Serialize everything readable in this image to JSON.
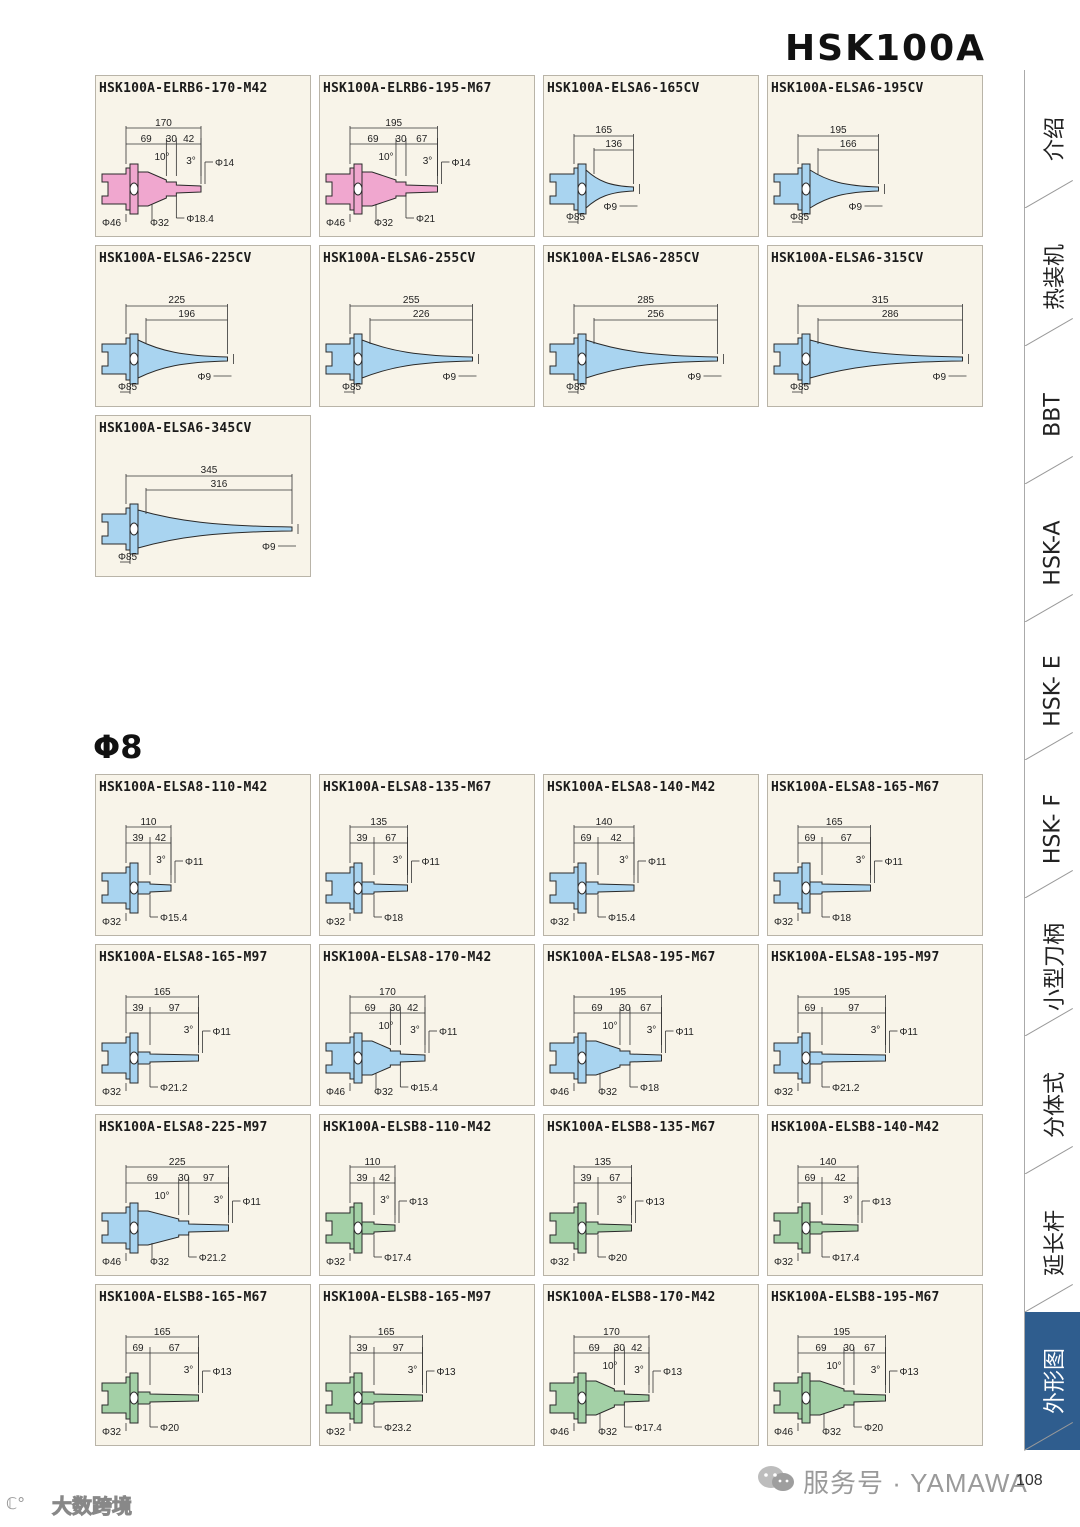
{
  "header": {
    "title": "HSK100A"
  },
  "section": {
    "heading": "Φ8"
  },
  "colors": {
    "pink": "#f0a7cf",
    "blue": "#a9d4f0",
    "green": "#a3d0a6",
    "nav_active": "#2f5d8e"
  },
  "cards": [
    {
      "title": "HSK100A-ELRB6-170-M42",
      "body": "pink",
      "shape": "stepped",
      "holder": "d46",
      "total": "170",
      "sub": [
        "69",
        "30",
        "42"
      ],
      "angle1": "10°",
      "angle2": "3°",
      "tip": "Φ14",
      "d1": "Φ46",
      "d2": "Φ32",
      "d3": "Φ18.4"
    },
    {
      "title": "HSK100A-ELRB6-195-M67",
      "body": "pink",
      "shape": "stepped",
      "holder": "d46",
      "total": "195",
      "sub": [
        "69",
        "30",
        "67"
      ],
      "angle1": "10°",
      "angle2": "3°",
      "tip": "Φ14",
      "d1": "Φ46",
      "d2": "Φ32",
      "d3": "Φ21"
    },
    {
      "title": "HSK100A-ELSA6-165CV",
      "body": "blue",
      "shape": "cone",
      "total": "165",
      "sub2": "136",
      "d1": "Φ85",
      "tip": "Φ9"
    },
    {
      "title": "HSK100A-ELSA6-195CV",
      "body": "blue",
      "shape": "cone",
      "total": "195",
      "sub2": "166",
      "d1": "Φ85",
      "tip": "Φ9"
    },
    {
      "title": "HSK100A-ELSA6-225CV",
      "body": "blue",
      "shape": "cone",
      "total": "225",
      "sub2": "196",
      "d1": "Φ85",
      "tip": "Φ9"
    },
    {
      "title": "HSK100A-ELSA6-255CV",
      "body": "blue",
      "shape": "cone",
      "total": "255",
      "sub2": "226",
      "d1": "Φ85",
      "tip": "Φ9"
    },
    {
      "title": "HSK100A-ELSA6-285CV",
      "body": "blue",
      "shape": "cone",
      "total": "285",
      "sub2": "256",
      "d1": "Φ85",
      "tip": "Φ9"
    },
    {
      "title": "HSK100A-ELSA6-315CV",
      "body": "blue",
      "shape": "cone",
      "total": "315",
      "sub2": "286",
      "d1": "Φ85",
      "tip": "Φ9"
    },
    {
      "title": "HSK100A-ELSA6-345CV",
      "body": "blue",
      "shape": "cone",
      "total": "345",
      "sub2": "316",
      "d1": "Φ85",
      "tip": "Φ9"
    },
    {
      "title": "HSK100A-ELSA8-110-M42",
      "body": "blue",
      "shape": "simple",
      "total": "110",
      "sub": [
        "39",
        "42"
      ],
      "angle2": "3°",
      "tip": "Φ11",
      "d1": "Φ32",
      "d3": "Φ15.4"
    },
    {
      "title": "HSK100A-ELSA8-135-M67",
      "body": "blue",
      "shape": "simple",
      "total": "135",
      "sub": [
        "39",
        "67"
      ],
      "angle2": "3°",
      "tip": "Φ11",
      "d1": "Φ32",
      "d3": "Φ18"
    },
    {
      "title": "HSK100A-ELSA8-140-M42",
      "body": "blue",
      "shape": "simple",
      "total": "140",
      "sub": [
        "69",
        "42"
      ],
      "angle2": "3°",
      "tip": "Φ11",
      "d1": "Φ32",
      "d3": "Φ15.4"
    },
    {
      "title": "HSK100A-ELSA8-165-M67",
      "body": "blue",
      "shape": "simple",
      "total": "165",
      "sub": [
        "69",
        "67"
      ],
      "angle2": "3°",
      "tip": "Φ11",
      "d1": "Φ32",
      "d3": "Φ18"
    },
    {
      "title": "HSK100A-ELSA8-165-M97",
      "body": "blue",
      "shape": "simple",
      "total": "165",
      "sub": [
        "39",
        "97"
      ],
      "angle2": "3°",
      "tip": "Φ11",
      "d1": "Φ32",
      "d3": "Φ21.2"
    },
    {
      "title": "HSK100A-ELSA8-170-M42",
      "body": "blue",
      "shape": "stepped",
      "total": "170",
      "sub": [
        "69",
        "30",
        "42"
      ],
      "angle1": "10°",
      "angle2": "3°",
      "tip": "Φ11",
      "d1": "Φ46",
      "d2": "Φ32",
      "d3": "Φ15.4"
    },
    {
      "title": "HSK100A-ELSA8-195-M67",
      "body": "blue",
      "shape": "stepped",
      "total": "195",
      "sub": [
        "69",
        "30",
        "67"
      ],
      "angle1": "10°",
      "angle2": "3°",
      "tip": "Φ11",
      "d1": "Φ46",
      "d2": "Φ32",
      "d3": "Φ18"
    },
    {
      "title": "HSK100A-ELSA8-195-M97",
      "body": "blue",
      "shape": "simple",
      "total": "195",
      "sub": [
        "69",
        "97"
      ],
      "angle2": "3°",
      "tip": "Φ11",
      "d1": "Φ32",
      "d3": "Φ21.2"
    },
    {
      "title": "HSK100A-ELSA8-225-M97",
      "body": "blue",
      "shape": "stepped",
      "total": "225",
      "sub": [
        "69",
        "30",
        "97"
      ],
      "angle1": "10°",
      "angle2": "3°",
      "tip": "Φ11",
      "d1": "Φ46",
      "d2": "Φ32",
      "d3": "Φ21.2"
    },
    {
      "title": "HSK100A-ELSB8-110-M42",
      "body": "green",
      "shape": "simple",
      "total": "110",
      "sub": [
        "39",
        "42"
      ],
      "angle2": "3°",
      "tip": "Φ13",
      "d1": "Φ32",
      "d3": "Φ17.4"
    },
    {
      "title": "HSK100A-ELSB8-135-M67",
      "body": "green",
      "shape": "simple",
      "total": "135",
      "sub": [
        "39",
        "67"
      ],
      "angle2": "3°",
      "tip": "Φ13",
      "d1": "Φ32",
      "d3": "Φ20"
    },
    {
      "title": "HSK100A-ELSB8-140-M42",
      "body": "green",
      "shape": "simple",
      "total": "140",
      "sub": [
        "69",
        "42"
      ],
      "angle2": "3°",
      "tip": "Φ13",
      "d1": "Φ32",
      "d3": "Φ17.4"
    },
    {
      "title": "HSK100A-ELSB8-165-M67",
      "body": "green",
      "shape": "simple",
      "total": "165",
      "sub": [
        "69",
        "67"
      ],
      "angle2": "3°",
      "tip": "Φ13",
      "d1": "Φ32",
      "d3": "Φ20"
    },
    {
      "title": "HSK100A-ELSB8-165-M97",
      "body": "green",
      "shape": "simple",
      "total": "165",
      "sub": [
        "39",
        "97"
      ],
      "angle2": "3°",
      "tip": "Φ13",
      "d1": "Φ32",
      "d3": "Φ23.2"
    },
    {
      "title": "HSK100A-ELSB8-170-M42",
      "body": "green",
      "shape": "stepped",
      "total": "170",
      "sub": [
        "69",
        "30",
        "42"
      ],
      "angle1": "10°",
      "angle2": "3°",
      "tip": "Φ13",
      "d1": "Φ46",
      "d2": "Φ32",
      "d3": "Φ17.4"
    },
    {
      "title": "HSK100A-ELSB8-195-M67",
      "body": "green",
      "shape": "stepped",
      "total": "195",
      "sub": [
        "69",
        "30",
        "67"
      ],
      "angle1": "10°",
      "angle2": "3°",
      "tip": "Φ13",
      "d1": "Φ46",
      "d2": "Φ32",
      "d3": "Φ20"
    }
  ],
  "nav": {
    "items": [
      "介绍",
      "热装机",
      "BBT",
      "HSK-A",
      "HSK- E",
      "HSK- F",
      "小型刀柄",
      "分体式",
      "延长杆",
      "外形图"
    ],
    "active": "外形图"
  },
  "footer": {
    "text": "服务号 · YAMAWA",
    "page_number": "108"
  },
  "watermark": {
    "text": "大数跨境"
  }
}
